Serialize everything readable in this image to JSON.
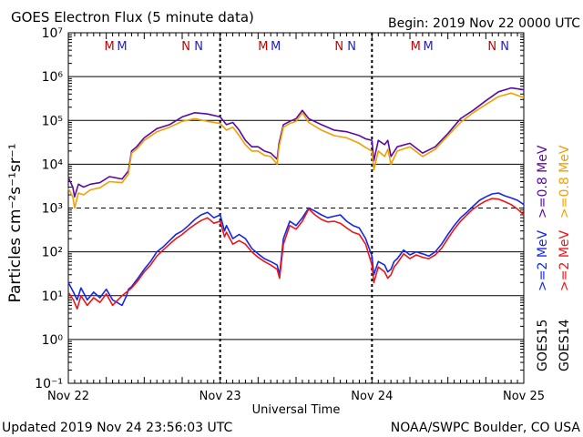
{
  "header": {
    "title": "GOES Electron Flux (5 minute data)",
    "begin": "Begin: 2019 Nov 22 0000 UTC"
  },
  "footer": {
    "updated": "Updated 2019 Nov 24 23:56:03 UTC",
    "credit": "NOAA/SWPC Boulder, CO USA"
  },
  "colors": {
    "goes15_hi": "#5a0aa0",
    "goes14_hi": "#f0a000",
    "goes15_lo": "#1428e6",
    "goes14_lo": "#f01414",
    "mark_M": "#c80000",
    "mark_N": "#1e1ec8"
  },
  "chart_data": {
    "type": "line",
    "title": "GOES Electron Flux (5 minute data)",
    "xlabel": "Universal Time",
    "ylabel": "Particles cm⁻²s⁻¹sr⁻¹",
    "yscale": "log",
    "ylim": [
      0.1,
      10000000
    ],
    "xlim": [
      0,
      72
    ],
    "x_unit": "hours since 2019 Nov 22 0000 UTC",
    "x_ticks": [
      {
        "x": 0,
        "label": "Nov 22"
      },
      {
        "x": 24,
        "label": "Nov 23"
      },
      {
        "x": 48,
        "label": "Nov 24"
      },
      {
        "x": 72,
        "label": "Nov 25"
      }
    ],
    "y_ticks": [
      {
        "exp": -1,
        "value": 0.1
      },
      {
        "exp": 0,
        "value": 1
      },
      {
        "exp": 1,
        "value": 10
      },
      {
        "exp": 2,
        "value": 100
      },
      {
        "exp": 3,
        "value": 1000
      },
      {
        "exp": 4,
        "value": 10000
      },
      {
        "exp": 5,
        "value": 100000
      },
      {
        "exp": 6,
        "value": 1000000
      },
      {
        "exp": 7,
        "value": 10000000
      }
    ],
    "threshold": 1000,
    "grid": true,
    "legend": [
      {
        "sat": "GOES15",
        "label": ">=0.8 MeV",
        "color": "#5a0aa0",
        "series": "GOES15 >=0.8 MeV"
      },
      {
        "sat": "GOES14",
        "label": ">=0.8 MeV",
        "color": "#f0a000",
        "series": "GOES14 >=0.8 MeV"
      },
      {
        "sat": "GOES15",
        "label": ">=2 MeV",
        "color": "#1428e6",
        "series": "GOES15 >=2 MeV"
      },
      {
        "sat": "GOES14",
        "label": ">=2 MeV",
        "color": "#f01414",
        "series": "GOES14 >=2 MeV"
      }
    ],
    "markers": [
      {
        "x": 6.5,
        "label": "M",
        "color": "#c80000"
      },
      {
        "x": 8.5,
        "label": "M",
        "color": "#1e1ec8"
      },
      {
        "x": 18.6,
        "label": "N",
        "color": "#c80000"
      },
      {
        "x": 20.6,
        "label": "N",
        "color": "#1e1ec8"
      },
      {
        "x": 30.8,
        "label": "M",
        "color": "#c80000"
      },
      {
        "x": 32.8,
        "label": "M",
        "color": "#1e1ec8"
      },
      {
        "x": 42.8,
        "label": "N",
        "color": "#c80000"
      },
      {
        "x": 44.8,
        "label": "N",
        "color": "#1e1ec8"
      },
      {
        "x": 54.9,
        "label": "M",
        "color": "#c80000"
      },
      {
        "x": 56.9,
        "label": "M",
        "color": "#1e1ec8"
      },
      {
        "x": 67.0,
        "label": "N",
        "color": "#c80000"
      },
      {
        "x": 69.0,
        "label": "N",
        "color": "#1e1ec8"
      }
    ],
    "series": [
      {
        "name": "GOES15 >=0.8 MeV",
        "color": "#5a0aa0",
        "x": [
          0,
          0.7,
          1.0,
          1.6,
          2.4,
          3.5,
          5.0,
          6.5,
          8.5,
          9.5,
          10.0,
          10.8,
          12,
          14,
          16,
          18,
          20,
          22,
          24,
          25,
          26,
          27,
          28,
          29,
          30,
          31,
          32,
          33,
          33.3,
          34,
          35,
          36,
          37,
          38,
          40,
          42,
          44,
          46,
          47,
          48,
          48.3,
          49,
          50,
          50.5,
          51,
          52,
          54,
          56,
          58,
          60,
          62,
          64,
          66,
          68,
          70,
          72
        ],
        "y": [
          5000,
          3000,
          1800,
          3500,
          3000,
          3500,
          3800,
          5200,
          4600,
          7000,
          20000,
          25000,
          40000,
          65000,
          80000,
          120000,
          150000,
          140000,
          120000,
          80000,
          90000,
          60000,
          35000,
          25000,
          25000,
          20000,
          18000,
          13000,
          30000,
          80000,
          95000,
          110000,
          170000,
          110000,
          80000,
          60000,
          55000,
          45000,
          38000,
          35000,
          12000,
          35000,
          28000,
          35000,
          15000,
          25000,
          30000,
          18000,
          25000,
          50000,
          110000,
          170000,
          280000,
          450000,
          550000,
          500000
        ]
      },
      {
        "name": "GOES14 >=0.8 MeV",
        "color": "#f0a000",
        "x": [
          0,
          0.7,
          1.0,
          1.6,
          2.4,
          3.5,
          5.0,
          6.5,
          8.5,
          9.5,
          10.0,
          10.8,
          12,
          14,
          16,
          18,
          20,
          22,
          24,
          25,
          26,
          27,
          28,
          29,
          30,
          31,
          32,
          33,
          33.3,
          34,
          35,
          36,
          37,
          38,
          40,
          42,
          44,
          46,
          47,
          48,
          48.3,
          49,
          50,
          50.5,
          51,
          52,
          54,
          56,
          58,
          60,
          62,
          64,
          66,
          68,
          70,
          72
        ],
        "y": [
          2800,
          1800,
          1000,
          2200,
          2000,
          2600,
          2900,
          4000,
          3800,
          6000,
          18000,
          22000,
          35000,
          55000,
          70000,
          95000,
          110000,
          95000,
          85000,
          60000,
          70000,
          45000,
          28000,
          20000,
          20000,
          16000,
          15000,
          10000,
          25000,
          70000,
          85000,
          95000,
          150000,
          90000,
          60000,
          45000,
          40000,
          30000,
          24000,
          20000,
          7500,
          20000,
          15000,
          22000,
          10000,
          20000,
          25000,
          15000,
          22000,
          45000,
          90000,
          150000,
          230000,
          350000,
          420000,
          330000
        ]
      },
      {
        "name": "GOES15 >=2 MeV",
        "color": "#1428e6",
        "x": [
          0,
          0.8,
          1.4,
          2,
          3,
          4,
          5,
          6,
          7,
          8.5,
          9.2,
          9.5,
          10,
          11,
          12,
          13,
          14,
          15,
          16,
          17,
          18,
          19,
          20,
          21,
          22,
          23,
          24,
          24.7,
          25,
          26,
          27,
          28,
          29,
          30,
          31,
          32,
          33,
          33.4,
          34,
          35,
          36,
          37,
          38,
          39,
          40,
          41,
          42,
          43,
          44,
          45,
          46,
          47,
          48,
          48.3,
          49,
          50,
          50.5,
          51,
          51.5,
          52,
          53,
          54,
          55,
          56,
          57,
          58,
          59,
          60,
          61,
          62,
          63,
          64,
          65,
          66,
          67,
          68,
          69,
          70,
          71,
          72
        ],
        "y": [
          20,
          12,
          8,
          15,
          8,
          12,
          9,
          14,
          8,
          6,
          10,
          14,
          16,
          25,
          40,
          60,
          100,
          130,
          180,
          250,
          300,
          400,
          550,
          700,
          800,
          600,
          700,
          300,
          400,
          200,
          250,
          200,
          120,
          90,
          70,
          60,
          50,
          30,
          200,
          500,
          400,
          600,
          1000,
          850,
          700,
          600,
          650,
          700,
          500,
          400,
          350,
          200,
          80,
          30,
          60,
          50,
          35,
          40,
          60,
          70,
          110,
          85,
          100,
          90,
          80,
          100,
          150,
          250,
          400,
          600,
          800,
          1100,
          1500,
          1800,
          2100,
          2200,
          1900,
          1700,
          1500,
          1200
        ]
      },
      {
        "name": "GOES14 >=2 MeV",
        "color": "#f01414",
        "x": [
          0,
          0.8,
          1.4,
          2,
          3,
          4,
          5,
          6,
          7,
          8.5,
          9.2,
          9.5,
          10,
          11,
          12,
          13,
          14,
          15,
          16,
          17,
          18,
          19,
          20,
          21,
          22,
          23,
          24,
          24.7,
          25,
          26,
          27,
          28,
          29,
          30,
          31,
          32,
          33,
          33.4,
          34,
          35,
          36,
          37,
          38,
          39,
          40,
          41,
          42,
          43,
          44,
          45,
          46,
          47,
          48,
          48.3,
          49,
          50,
          50.5,
          51,
          51.5,
          52,
          53,
          54,
          55,
          56,
          57,
          58,
          59,
          60,
          61,
          62,
          63,
          64,
          65,
          66,
          67,
          68,
          69,
          70,
          71,
          72
        ],
        "y": [
          12,
          8,
          5,
          10,
          6,
          9,
          7,
          11,
          6,
          10,
          12,
          13,
          15,
          22,
          35,
          50,
          80,
          110,
          150,
          200,
          250,
          330,
          420,
          520,
          600,
          450,
          500,
          220,
          280,
          150,
          180,
          150,
          100,
          75,
          60,
          50,
          40,
          25,
          150,
          400,
          330,
          500,
          950,
          700,
          550,
          480,
          500,
          450,
          350,
          280,
          250,
          150,
          50,
          20,
          45,
          35,
          25,
          30,
          45,
          55,
          90,
          70,
          85,
          75,
          70,
          85,
          120,
          200,
          330,
          500,
          700,
          950,
          1200,
          1450,
          1650,
          1600,
          1400,
          1200,
          950,
          700
        ]
      }
    ]
  }
}
